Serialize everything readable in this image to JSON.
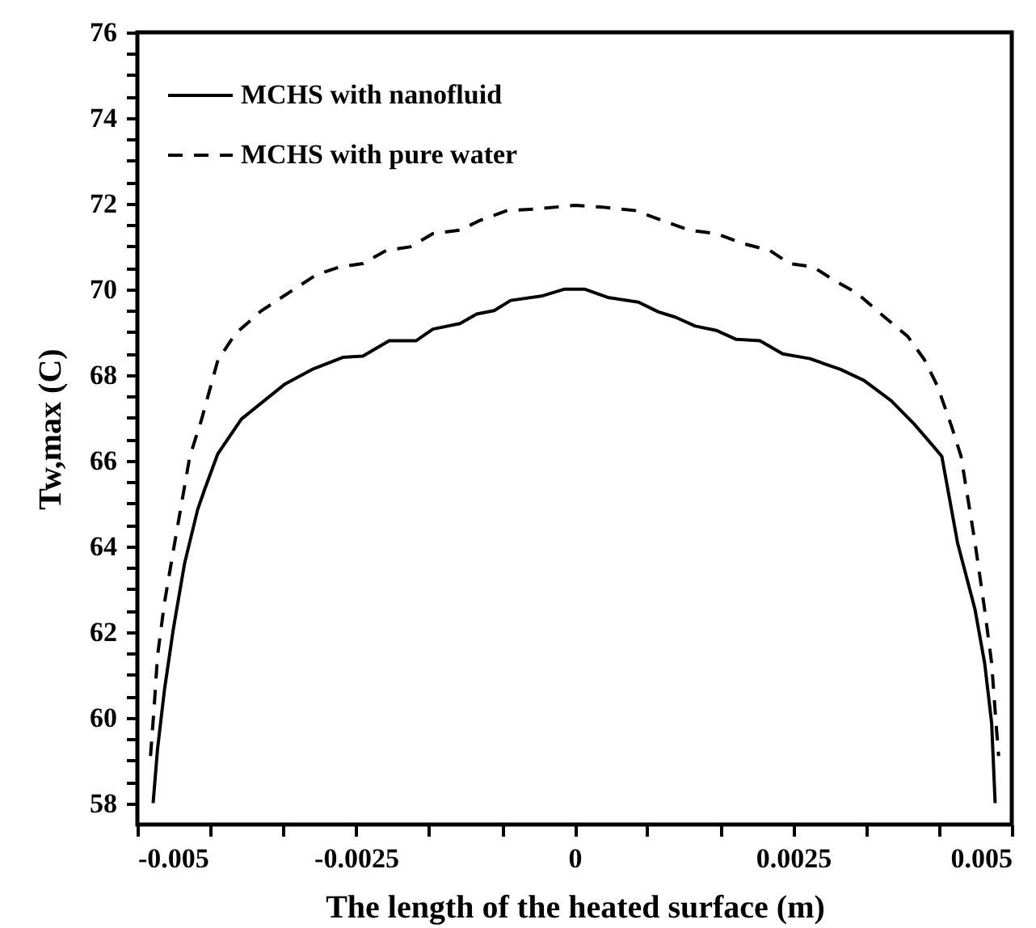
{
  "chart_data": {
    "type": "line",
    "xlabel": "The length of the heated surface (m)",
    "ylabel": "Tw,max (C)",
    "xlim": [
      -0.005,
      0.005
    ],
    "xticks": [
      -0.005,
      {
        "value": -0.00417,
        "label": null
      },
      {
        "value": -0.00333,
        "label": null
      },
      -0.0025,
      {
        "value": -0.00167,
        "label": null
      },
      {
        "value": -0.00083,
        "label": null
      },
      0,
      {
        "value": 0.00083,
        "label": null
      },
      {
        "value": 0.00167,
        "label": null
      },
      0.0025,
      {
        "value": 0.00333,
        "label": null
      },
      {
        "value": 0.00417,
        "label": null
      },
      0.005
    ],
    "ylim": [
      57.5,
      76
    ],
    "yticks": [
      58,
      {
        "value": 58.5,
        "label": null
      },
      {
        "value": 59,
        "label": null
      },
      {
        "value": 59.5,
        "label": null
      },
      60,
      {
        "value": 60.5,
        "label": null
      },
      {
        "value": 61,
        "label": null
      },
      {
        "value": 61.5,
        "label": null
      },
      62,
      {
        "value": 62.5,
        "label": null
      },
      {
        "value": 63,
        "label": null
      },
      {
        "value": 63.5,
        "label": null
      },
      64,
      {
        "value": 64.5,
        "label": null
      },
      {
        "value": 65,
        "label": null
      },
      {
        "value": 65.5,
        "label": null
      },
      66,
      {
        "value": 66.5,
        "label": null
      },
      {
        "value": 67,
        "label": null
      },
      {
        "value": 67.5,
        "label": null
      },
      68,
      {
        "value": 68.5,
        "label": null
      },
      {
        "value": 69,
        "label": null
      },
      {
        "value": 69.5,
        "label": null
      },
      70,
      {
        "value": 70.5,
        "label": null
      },
      {
        "value": 71,
        "label": null
      },
      {
        "value": 71.5,
        "label": null
      },
      72,
      {
        "value": 72.5,
        "label": null
      },
      {
        "value": 73,
        "label": null
      },
      {
        "value": 73.5,
        "label": null
      },
      74,
      {
        "value": 74.5,
        "label": null
      },
      {
        "value": 75,
        "label": null
      },
      {
        "value": 75.5,
        "label": null
      },
      76
    ],
    "grid": false,
    "legend": "top left",
    "series": [
      {
        "name": "MCHS with nanofluid",
        "color": "#000000",
        "line_style": "solid",
        "x": [
          -0.00482,
          -0.00477,
          -0.00469,
          -0.00459,
          -0.00446,
          -0.00431,
          -0.00423,
          -0.00408,
          -0.00381,
          -0.00331,
          -0.003,
          -0.00265,
          -0.00242,
          -0.00212,
          -0.00181,
          -0.00162,
          -0.00131,
          -0.00112,
          -0.00092,
          -0.00073,
          -0.00038,
          -0.00012,
          0.00012,
          0.00038,
          0.00073,
          0.00096,
          0.00115,
          0.00138,
          0.00162,
          0.00185,
          0.00212,
          0.00238,
          0.00269,
          0.00304,
          0.00331,
          0.00362,
          0.00388,
          0.00408,
          0.0042,
          0.00438,
          0.00458,
          0.00469,
          0.00477,
          0.00481
        ],
        "values": [
          58.0,
          59.25,
          60.65,
          62.05,
          63.6,
          64.86,
          65.33,
          66.16,
          66.97,
          67.79,
          68.13,
          68.41,
          68.44,
          68.8,
          68.8,
          69.07,
          69.2,
          69.42,
          69.5,
          69.74,
          69.84,
          70.0,
          70.0,
          69.81,
          69.7,
          69.47,
          69.35,
          69.14,
          69.04,
          68.83,
          68.8,
          68.49,
          68.38,
          68.13,
          67.87,
          67.4,
          66.86,
          66.39,
          66.1,
          64.08,
          62.52,
          61.27,
          59.87,
          58.0
        ]
      },
      {
        "name": "MCHS with pure water",
        "color": "#000000",
        "line_style": "dashed",
        "x": [
          -0.00485,
          -0.00481,
          -0.00477,
          -0.00469,
          -0.00458,
          -0.0044,
          -0.00427,
          -0.00408,
          -0.00388,
          -0.00358,
          -0.00323,
          -0.00296,
          -0.00269,
          -0.00242,
          -0.00215,
          -0.00188,
          -0.00162,
          -0.00131,
          -0.00108,
          -0.00077,
          -0.00046,
          0,
          0.00031,
          0.00069,
          0.001,
          0.00131,
          0.00162,
          0.00192,
          0.00223,
          0.00246,
          0.00273,
          0.00296,
          0.00323,
          0.00354,
          0.00381,
          0.004,
          0.00415,
          0.00431,
          0.00442,
          0.00458,
          0.00469,
          0.00477,
          0.00482,
          0.00485
        ],
        "values": [
          59.1,
          60.18,
          61.43,
          62.68,
          64.0,
          66.1,
          66.93,
          68.34,
          68.96,
          69.5,
          69.97,
          70.33,
          70.52,
          70.6,
          70.91,
          70.99,
          71.3,
          71.38,
          71.61,
          71.84,
          71.87,
          71.96,
          71.92,
          71.84,
          71.61,
          71.38,
          71.3,
          71.07,
          70.91,
          70.6,
          70.52,
          70.22,
          69.91,
          69.36,
          68.9,
          68.36,
          67.74,
          66.81,
          66.1,
          64.08,
          62.52,
          61.27,
          59.87,
          59.1
        ]
      }
    ]
  }
}
